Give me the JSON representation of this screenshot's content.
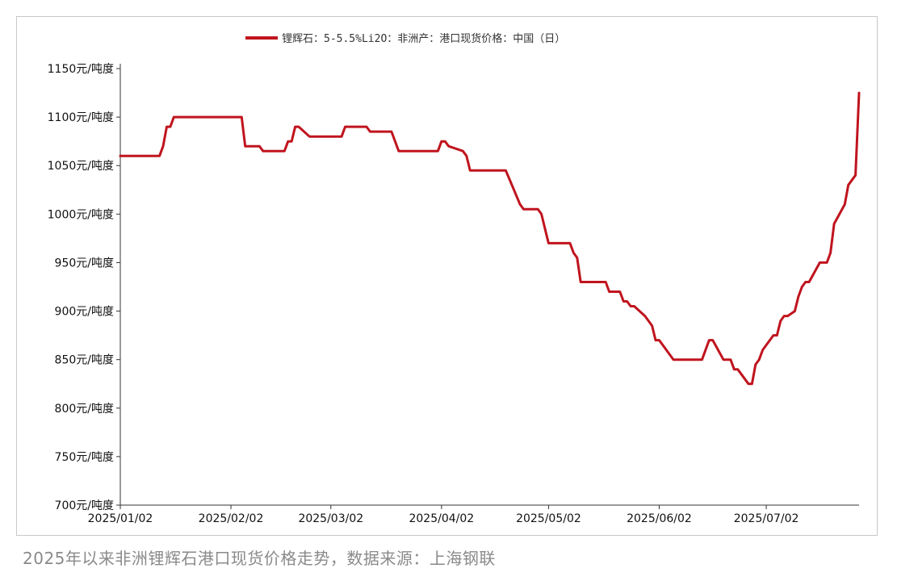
{
  "caption": "2025年以来非洲锂辉石港口现货价格走势，数据来源：上海钢联",
  "chart_data": {
    "type": "line",
    "title": "",
    "xlabel": "",
    "ylabel": "",
    "y_unit_suffix": "元/吨度",
    "ylim": [
      700,
      1150
    ],
    "yticks": [
      700,
      750,
      800,
      850,
      900,
      950,
      1000,
      1050,
      1100,
      1150
    ],
    "ytick_labels": [
      "700元/吨度",
      "750元/吨度",
      "800元/吨度",
      "850元/吨度",
      "900元/吨度",
      "950元/吨度",
      "1000元/吨度",
      "1050元/吨度",
      "1100元/吨度",
      "1150元/吨度"
    ],
    "xlim": [
      "2025-01-02",
      "2025-07-28"
    ],
    "xticks": [
      "2025-01-02",
      "2025-02-02",
      "2025-03-02",
      "2025-04-02",
      "2025-05-02",
      "2025-06-02",
      "2025-07-02"
    ],
    "xtick_labels": [
      "2025/01/02",
      "2025/02/02",
      "2025/03/02",
      "2025/04/02",
      "2025/05/02",
      "2025/06/02",
      "2025/07/02"
    ],
    "grid": false,
    "legend_position": "top-center",
    "color": "#c0141e",
    "series": [
      {
        "name": "锂辉石：5-5.5%Li2O：非洲产：港口现货价格：中国（日）",
        "points": [
          [
            "2025-01-02",
            1060
          ],
          [
            "2025-01-13",
            1060
          ],
          [
            "2025-01-14",
            1070
          ],
          [
            "2025-01-15",
            1090
          ],
          [
            "2025-01-16",
            1090
          ],
          [
            "2025-01-17",
            1100
          ],
          [
            "2025-02-05",
            1100
          ],
          [
            "2025-02-06",
            1070
          ],
          [
            "2025-02-10",
            1070
          ],
          [
            "2025-02-11",
            1065
          ],
          [
            "2025-02-17",
            1065
          ],
          [
            "2025-02-18",
            1075
          ],
          [
            "2025-02-19",
            1075
          ],
          [
            "2025-02-20",
            1090
          ],
          [
            "2025-02-21",
            1090
          ],
          [
            "2025-02-24",
            1080
          ],
          [
            "2025-03-05",
            1080
          ],
          [
            "2025-03-06",
            1090
          ],
          [
            "2025-03-12",
            1090
          ],
          [
            "2025-03-13",
            1085
          ],
          [
            "2025-03-19",
            1085
          ],
          [
            "2025-03-21",
            1065
          ],
          [
            "2025-04-01",
            1065
          ],
          [
            "2025-04-02",
            1075
          ],
          [
            "2025-04-03",
            1075
          ],
          [
            "2025-04-04",
            1070
          ],
          [
            "2025-04-08",
            1065
          ],
          [
            "2025-04-09",
            1060
          ],
          [
            "2025-04-10",
            1045
          ],
          [
            "2025-04-20",
            1045
          ],
          [
            "2025-04-24",
            1010
          ],
          [
            "2025-04-25",
            1005
          ],
          [
            "2025-04-29",
            1005
          ],
          [
            "2025-04-30",
            1000
          ],
          [
            "2025-05-01",
            985
          ],
          [
            "2025-05-02",
            970
          ],
          [
            "2025-05-08",
            970
          ],
          [
            "2025-05-09",
            960
          ],
          [
            "2025-05-10",
            955
          ],
          [
            "2025-05-11",
            930
          ],
          [
            "2025-05-18",
            930
          ],
          [
            "2025-05-19",
            920
          ],
          [
            "2025-05-22",
            920
          ],
          [
            "2025-05-23",
            910
          ],
          [
            "2025-05-24",
            910
          ],
          [
            "2025-05-25",
            905
          ],
          [
            "2025-05-26",
            905
          ],
          [
            "2025-05-29",
            895
          ],
          [
            "2025-05-31",
            885
          ],
          [
            "2025-06-01",
            870
          ],
          [
            "2025-06-02",
            870
          ],
          [
            "2025-06-06",
            850
          ],
          [
            "2025-06-14",
            850
          ],
          [
            "2025-06-16",
            870
          ],
          [
            "2025-06-17",
            870
          ],
          [
            "2025-06-20",
            850
          ],
          [
            "2025-06-22",
            850
          ],
          [
            "2025-06-23",
            840
          ],
          [
            "2025-06-24",
            840
          ],
          [
            "2025-06-27",
            825
          ],
          [
            "2025-06-28",
            825
          ],
          [
            "2025-06-29",
            845
          ],
          [
            "2025-06-30",
            850
          ],
          [
            "2025-07-01",
            860
          ],
          [
            "2025-07-04",
            875
          ],
          [
            "2025-07-05",
            875
          ],
          [
            "2025-07-06",
            890
          ],
          [
            "2025-07-07",
            895
          ],
          [
            "2025-07-08",
            895
          ],
          [
            "2025-07-10",
            900
          ],
          [
            "2025-07-11",
            915
          ],
          [
            "2025-07-12",
            925
          ],
          [
            "2025-07-13",
            930
          ],
          [
            "2025-07-14",
            930
          ],
          [
            "2025-07-17",
            950
          ],
          [
            "2025-07-19",
            950
          ],
          [
            "2025-07-20",
            960
          ],
          [
            "2025-07-21",
            990
          ],
          [
            "2025-07-24",
            1010
          ],
          [
            "2025-07-25",
            1030
          ],
          [
            "2025-07-27",
            1040
          ],
          [
            "2025-07-28",
            1125
          ]
        ]
      }
    ]
  }
}
